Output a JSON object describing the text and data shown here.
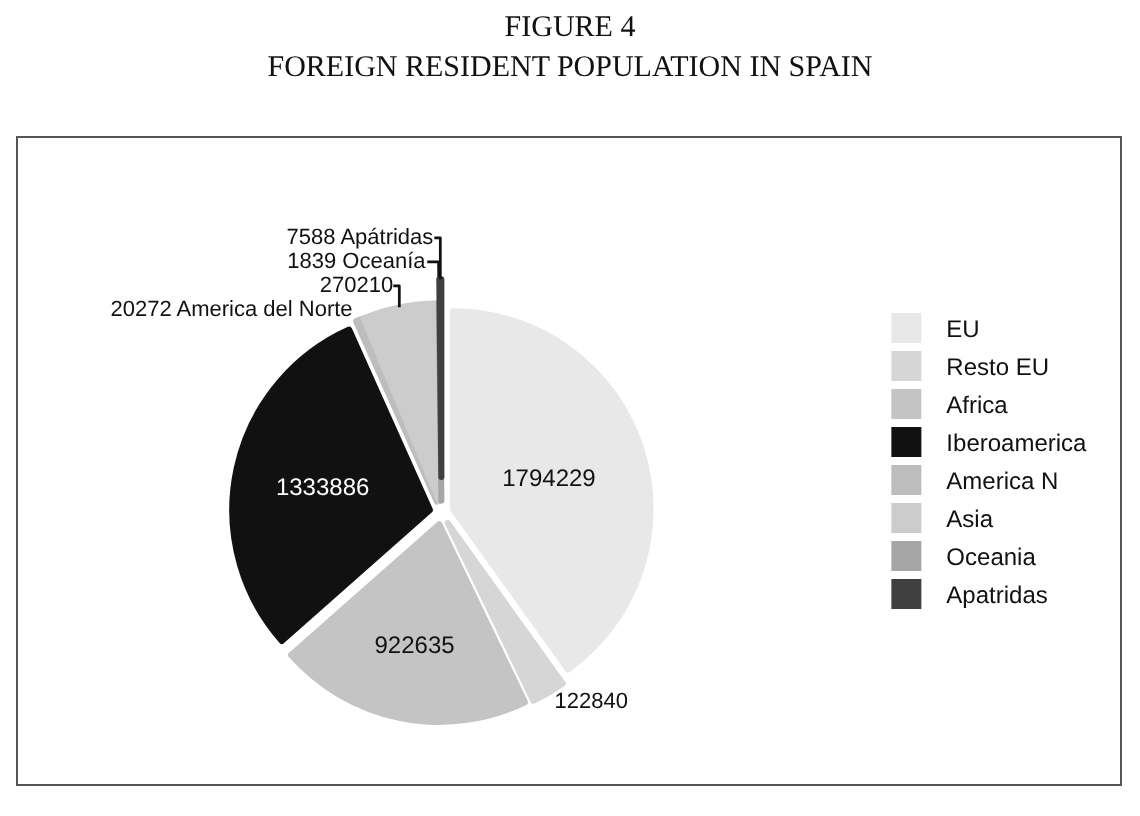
{
  "chart_data": {
    "type": "pie",
    "title": "FIGURE 4",
    "subtitle": "FOREIGN RESIDENT POPULATION IN SPAIN",
    "categories": [
      "EU",
      "Resto EU",
      "Africa",
      "Iberoamerica",
      "America N",
      "Asia",
      "Oceania",
      "Apatridas"
    ],
    "values": [
      1794229,
      122840,
      922635,
      1333886,
      20272,
      270210,
      1839,
      7588
    ],
    "colors": [
      "#e8e8e8",
      "#d6d6d6",
      "#c4c4c4",
      "#111111",
      "#bdbdbd",
      "#cccccc",
      "#a6a6a6",
      "#404040"
    ],
    "value_labels": [
      "1794229",
      "122840",
      "922635",
      "1333886",
      "20272 America del Norte",
      "270210",
      "1839 Oceanía",
      "7588 Apátridas"
    ],
    "legend": "right"
  }
}
